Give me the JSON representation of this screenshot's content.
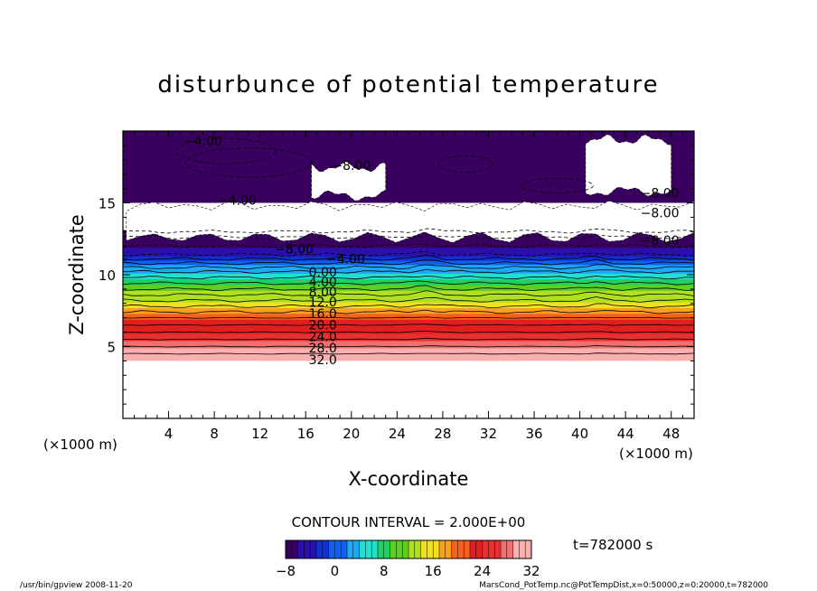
{
  "chart_data": {
    "type": "heatmap",
    "title": "disturbunce of potential temperature",
    "xlabel": "X-coordinate",
    "ylabel": "Z-coordinate",
    "x_unit_left": "(×1000 m)",
    "x_unit_right": "(×1000 m)",
    "xlim": [
      0,
      50
    ],
    "ylim": [
      0,
      20
    ],
    "x_ticks": [
      "4",
      "8",
      "12",
      "16",
      "20",
      "24",
      "28",
      "32",
      "36",
      "40",
      "44",
      "48"
    ],
    "y_ticks": [
      "5",
      "10",
      "15"
    ],
    "contour_interval_text": "CONTOUR INTERVAL = 2.000E+00",
    "time_text": "t=782000 s",
    "colorbar": {
      "min": -8,
      "max": 32,
      "tick_labels": [
        "−8",
        "0",
        "8",
        "16",
        "24",
        "32"
      ],
      "colors": [
        "#3a0060",
        "#2a10a8",
        "#1030d0",
        "#1060f0",
        "#20a8f8",
        "#20e0d0",
        "#20d060",
        "#60d020",
        "#b0e020",
        "#f0e020",
        "#f8a020",
        "#f86020",
        "#e02020",
        "#e83030",
        "#f07070",
        "#f8b0b0"
      ]
    },
    "contour_labels": [
      {
        "text": "−4.00",
        "x": 7,
        "z": 19.3
      },
      {
        "text": "−8.00",
        "x": 20,
        "z": 17.6
      },
      {
        "text": "−4.00",
        "x": 10,
        "z": 15.2
      },
      {
        "text": "−8.00",
        "x": 47,
        "z": 15.7
      },
      {
        "text": "−8.00",
        "x": 47,
        "z": 14.3
      },
      {
        "text": "−8.00",
        "x": 47,
        "z": 12.4
      },
      {
        "text": "−8.00",
        "x": 15,
        "z": 11.8
      },
      {
        "text": "−4.00",
        "x": 19.5,
        "z": 11.1
      },
      {
        "text": "0.00",
        "x": 17.5,
        "z": 10.2
      },
      {
        "text": "4.00",
        "x": 17.5,
        "z": 9.5
      },
      {
        "text": "8.00",
        "x": 17.5,
        "z": 8.8
      },
      {
        "text": "12.0",
        "x": 17.5,
        "z": 8.1
      },
      {
        "text": "16.0",
        "x": 17.5,
        "z": 7.3
      },
      {
        "text": "20.0",
        "x": 17.5,
        "z": 6.5
      },
      {
        "text": "24.0",
        "x": 17.5,
        "z": 5.7
      },
      {
        "text": "28.0",
        "x": 17.5,
        "z": 4.9
      },
      {
        "text": "32.0",
        "x": 17.5,
        "z": 4.1
      }
    ],
    "bands": [
      {
        "value": 32,
        "z_bottom": 4.0,
        "z_top": 4.5
      },
      {
        "value": 30,
        "z_bottom": 4.5,
        "z_top": 5.0
      },
      {
        "value": 28,
        "z_bottom": 5.0,
        "z_top": 5.5
      },
      {
        "value": 26,
        "z_bottom": 5.5,
        "z_top": 6.0
      },
      {
        "value": 24,
        "z_bottom": 6.0,
        "z_top": 6.5
      },
      {
        "value": 22,
        "z_bottom": 6.5,
        "z_top": 7.0
      },
      {
        "value": 20,
        "z_bottom": 7.0,
        "z_top": 7.4
      },
      {
        "value": 18,
        "z_bottom": 7.4,
        "z_top": 7.8
      },
      {
        "value": 16,
        "z_bottom": 7.8,
        "z_top": 8.2
      },
      {
        "value": 14,
        "z_bottom": 8.2,
        "z_top": 8.6
      },
      {
        "value": 12,
        "z_bottom": 8.6,
        "z_top": 9.0
      },
      {
        "value": 10,
        "z_bottom": 9.0,
        "z_top": 9.4
      },
      {
        "value": 8,
        "z_bottom": 9.4,
        "z_top": 9.8
      },
      {
        "value": 6,
        "z_bottom": 9.8,
        "z_top": 10.2
      },
      {
        "value": 4,
        "z_bottom": 10.2,
        "z_top": 10.5
      },
      {
        "value": 2,
        "z_bottom": 10.5,
        "z_top": 10.8
      },
      {
        "value": 0,
        "z_bottom": 10.8,
        "z_top": 11.1
      },
      {
        "value": -2,
        "z_bottom": 11.1,
        "z_top": 11.4
      },
      {
        "value": -4,
        "z_bottom": 11.4,
        "z_top": 12.0
      },
      {
        "value": -6,
        "z_bottom": 12.0,
        "z_top": 12.6
      },
      {
        "value": -8,
        "z_bottom": 12.6,
        "z_top": 13.0
      }
    ],
    "upper_region": {
      "value": -6,
      "z_bottom": 15.0,
      "z_top": 20.0
    },
    "missing_regions": [
      {
        "x0": 0,
        "x1": 50,
        "z0": 0,
        "z1": 4.0
      },
      {
        "x0": 0.3,
        "x1": 50,
        "z0": 12.6,
        "z1": 14.8
      },
      {
        "x0": 40.5,
        "x1": 48,
        "z0": 15.8,
        "z1": 19.4
      },
      {
        "x0": 16.5,
        "x1": 23.0,
        "z0": 15.5,
        "z1": 17.5
      }
    ]
  },
  "footer": {
    "left": "/usr/bin/gpview   2008-11-20",
    "right": "MarsCond_PotTemp.nc@PotTempDist,x=0:50000,z=0:20000,t=782000"
  }
}
